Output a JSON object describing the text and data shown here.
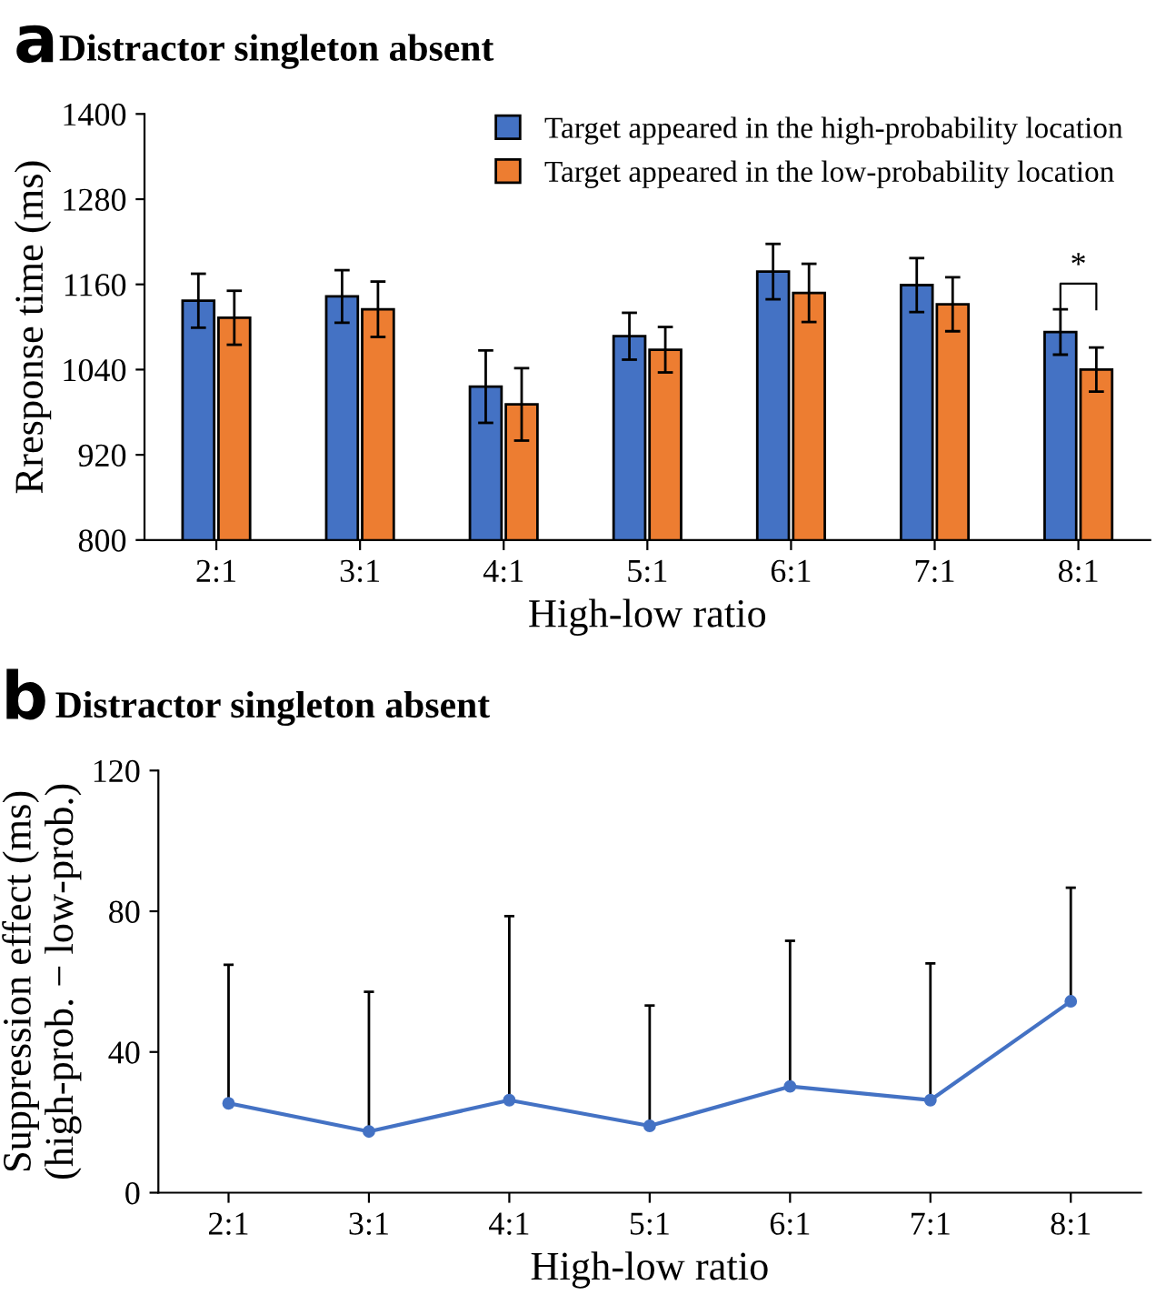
{
  "chart_data": [
    {
      "type": "bar",
      "title": "Distractor singleton absent",
      "xlabel": "High-low ratio",
      "ylabel": "Rresponse time (ms)",
      "categories": [
        "2:1",
        "3:1",
        "4:1",
        "5:1",
        "6:1",
        "7:1",
        "8:1"
      ],
      "series": [
        {
          "name": "Target appeared in the high-probability location",
          "color": "#4472c4",
          "values": [
            1137,
            1143,
            1016,
            1087,
            1178,
            1159,
            1093
          ],
          "errors": [
            38,
            37,
            51,
            33,
            39,
            38,
            32
          ]
        },
        {
          "name": "Target appeared in the low-probability location",
          "color": "#ed7d31",
          "values": [
            1113,
            1125,
            991,
            1068,
            1148,
            1132,
            1040
          ],
          "errors": [
            38,
            39,
            51,
            32,
            41,
            38,
            31
          ]
        }
      ],
      "ylim": [
        800,
        1400
      ],
      "yticks": [
        800,
        920,
        1040,
        1160,
        1280,
        1400
      ],
      "grid": false,
      "legend": "top right",
      "annotations": [
        "a",
        "*"
      ]
    },
    {
      "type": "line",
      "title": "Distractor singleton absent",
      "xlabel": "High-low ratio",
      "ylabel": "Suppression effect (ms)\n(high-prob. − low-prob.)",
      "categories": [
        "2:1",
        "3:1",
        "4:1",
        "5:1",
        "6:1",
        "7:1",
        "8:1"
      ],
      "series": [
        {
          "color": "#4472c4",
          "values": [
            25.4,
            17.4,
            26.3,
            19.0,
            30.2,
            26.3,
            54.4
          ],
          "errors": [
            [
              25.4,
              64.8
            ],
            [
              17.4,
              57.1
            ],
            [
              26.3,
              78.6
            ],
            [
              19.0,
              53.2
            ],
            [
              30.2,
              71.6
            ],
            [
              26.3,
              65.2
            ],
            [
              54.4,
              86.7
            ]
          ]
        }
      ],
      "ylim": [
        0,
        120
      ],
      "yticks": [
        0,
        40,
        80,
        120
      ],
      "grid": false,
      "legend": false,
      "marker": "circle",
      "line_style": "solid",
      "annotations": [
        "b"
      ]
    }
  ]
}
